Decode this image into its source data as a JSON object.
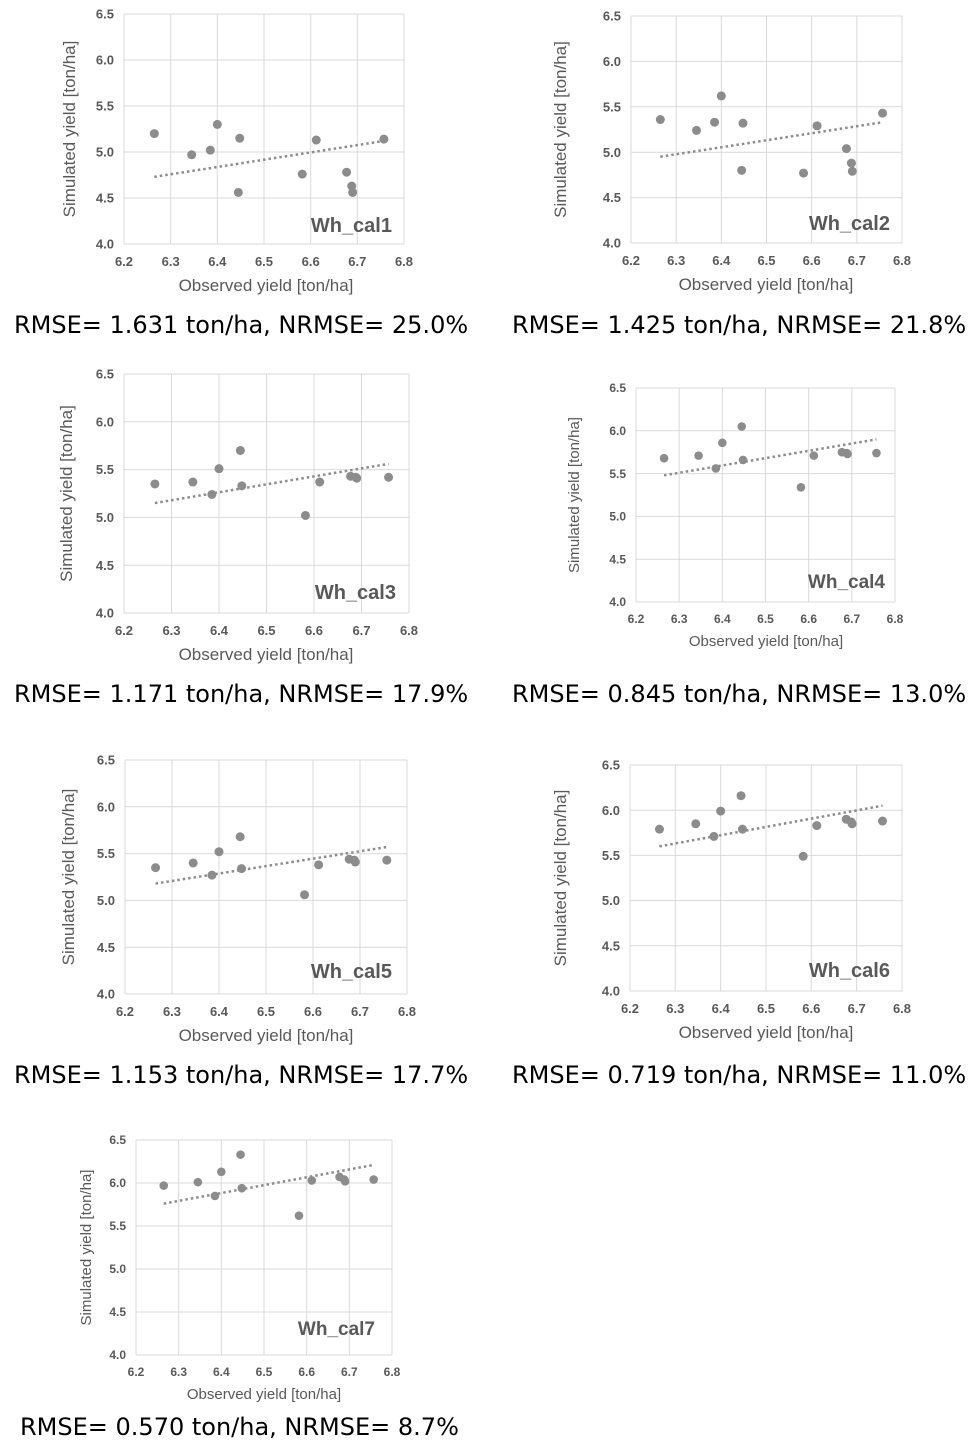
{
  "chart_data": [
    {
      "type": "scatter",
      "title": "Wh_cal1",
      "xlabel": "Observed yield [ton/ha]",
      "ylabel": "Simulated yield [ton/ha]",
      "xlim": [
        6.2,
        6.8
      ],
      "ylim": [
        4.0,
        6.5
      ],
      "xticks": [
        "6.2",
        "6.3",
        "6.4",
        "6.5",
        "6.6",
        "6.7",
        "6.8"
      ],
      "yticks": [
        "4.0",
        "4.5",
        "5.0",
        "5.5",
        "6.0",
        "6.5"
      ],
      "points": [
        [
          6.265,
          5.2
        ],
        [
          6.345,
          4.97
        ],
        [
          6.385,
          5.02
        ],
        [
          6.4,
          5.3
        ],
        [
          6.445,
          4.56
        ],
        [
          6.448,
          5.15
        ],
        [
          6.582,
          4.76
        ],
        [
          6.612,
          5.13
        ],
        [
          6.677,
          4.78
        ],
        [
          6.688,
          4.63
        ],
        [
          6.69,
          4.56
        ],
        [
          6.757,
          5.14
        ]
      ],
      "trendline": [
        [
          6.265,
          4.73
        ],
        [
          6.757,
          5.12
        ]
      ],
      "grid": true,
      "caption": "RMSE= 1.631 ton/ha, NRMSE= 25.0%"
    },
    {
      "type": "scatter",
      "title": "Wh_cal2",
      "xlabel": "Observed yield [ton/ha]",
      "ylabel": "Simulated yield [ton/ha]",
      "xlim": [
        6.2,
        6.8
      ],
      "ylim": [
        4.0,
        6.5
      ],
      "xticks": [
        "6.2",
        "6.3",
        "6.4",
        "6.5",
        "6.6",
        "6.7",
        "6.8"
      ],
      "yticks": [
        "4.0",
        "4.5",
        "5.0",
        "5.5",
        "6.0",
        "6.5"
      ],
      "points": [
        [
          6.265,
          5.36
        ],
        [
          6.345,
          5.24
        ],
        [
          6.385,
          5.33
        ],
        [
          6.4,
          5.62
        ],
        [
          6.445,
          4.8
        ],
        [
          6.448,
          5.32
        ],
        [
          6.582,
          4.77
        ],
        [
          6.612,
          5.29
        ],
        [
          6.677,
          5.04
        ],
        [
          6.688,
          4.88
        ],
        [
          6.69,
          4.79
        ],
        [
          6.757,
          5.43
        ]
      ],
      "trendline": [
        [
          6.265,
          4.95
        ],
        [
          6.757,
          5.33
        ]
      ],
      "grid": true,
      "caption": "RMSE= 1.425 ton/ha, NRMSE= 21.8%"
    },
    {
      "type": "scatter",
      "title": "Wh_cal3",
      "xlabel": "Observed yield [ton/ha]",
      "ylabel": "Simulated yield [ton/ha]",
      "xlim": [
        6.2,
        6.8
      ],
      "ylim": [
        4.0,
        6.5
      ],
      "xticks": [
        "6.2",
        "6.3",
        "6.4",
        "6.5",
        "6.6",
        "6.7",
        "6.8"
      ],
      "yticks": [
        "4.0",
        "4.5",
        "5.0",
        "5.5",
        "6.0",
        "6.5"
      ],
      "points": [
        [
          6.265,
          5.35
        ],
        [
          6.345,
          5.37
        ],
        [
          6.385,
          5.24
        ],
        [
          6.4,
          5.51
        ],
        [
          6.445,
          5.7
        ],
        [
          6.448,
          5.33
        ],
        [
          6.582,
          5.02
        ],
        [
          6.612,
          5.37
        ],
        [
          6.677,
          5.43
        ],
        [
          6.688,
          5.42
        ],
        [
          6.69,
          5.41
        ],
        [
          6.757,
          5.42
        ]
      ],
      "trendline": [
        [
          6.265,
          5.15
        ],
        [
          6.757,
          5.56
        ]
      ],
      "grid": true,
      "caption": "RMSE= 1.171 ton/ha, NRMSE= 17.9%"
    },
    {
      "type": "scatter",
      "title": "Wh_cal4",
      "xlabel": "Observed yield [ton/ha]",
      "ylabel": "Simulated yield [ton/ha]",
      "xlim": [
        6.2,
        6.8
      ],
      "ylim": [
        4.0,
        6.5
      ],
      "xticks": [
        "6.2",
        "6.3",
        "6.4",
        "6.5",
        "6.6",
        "6.7",
        "6.8"
      ],
      "yticks": [
        "4.0",
        "4.5",
        "5.0",
        "5.5",
        "6.0",
        "6.5"
      ],
      "points": [
        [
          6.265,
          5.68
        ],
        [
          6.345,
          5.71
        ],
        [
          6.385,
          5.56
        ],
        [
          6.4,
          5.86
        ],
        [
          6.445,
          6.05
        ],
        [
          6.448,
          5.66
        ],
        [
          6.582,
          5.34
        ],
        [
          6.612,
          5.71
        ],
        [
          6.677,
          5.75
        ],
        [
          6.688,
          5.74
        ],
        [
          6.69,
          5.73
        ],
        [
          6.757,
          5.74
        ]
      ],
      "trendline": [
        [
          6.265,
          5.48
        ],
        [
          6.757,
          5.9
        ]
      ],
      "grid": true,
      "caption": "RMSE= 0.845 ton/ha, NRMSE= 13.0%"
    },
    {
      "type": "scatter",
      "title": "Wh_cal5",
      "xlabel": "Observed yield [ton/ha]",
      "ylabel": "Simulated yield [ton/ha]",
      "xlim": [
        6.2,
        6.8
      ],
      "ylim": [
        4.0,
        6.5
      ],
      "xticks": [
        "6.2",
        "6.3",
        "6.4",
        "6.5",
        "6.6",
        "6.7",
        "6.8"
      ],
      "yticks": [
        "4.0",
        "4.5",
        "5.0",
        "5.5",
        "6.0",
        "6.5"
      ],
      "points": [
        [
          6.265,
          5.35
        ],
        [
          6.345,
          5.4
        ],
        [
          6.385,
          5.27
        ],
        [
          6.4,
          5.52
        ],
        [
          6.445,
          5.68
        ],
        [
          6.448,
          5.34
        ],
        [
          6.582,
          5.06
        ],
        [
          6.612,
          5.38
        ],
        [
          6.677,
          5.44
        ],
        [
          6.688,
          5.43
        ],
        [
          6.69,
          5.41
        ],
        [
          6.757,
          5.43
        ]
      ],
      "trendline": [
        [
          6.265,
          5.18
        ],
        [
          6.757,
          5.57
        ]
      ],
      "grid": true,
      "caption": "RMSE= 1.153 ton/ha, NRMSE= 17.7%"
    },
    {
      "type": "scatter",
      "title": "Wh_cal6",
      "xlabel": "Observed yield [ton/ha]",
      "ylabel": "Simulated yield [ton/ha]",
      "xlim": [
        6.2,
        6.8
      ],
      "ylim": [
        4.0,
        6.5
      ],
      "xticks": [
        "6.2",
        "6.3",
        "6.4",
        "6.5",
        "6.6",
        "6.7",
        "6.8"
      ],
      "yticks": [
        "4.0",
        "4.5",
        "5.0",
        "5.5",
        "6.0",
        "6.5"
      ],
      "points": [
        [
          6.265,
          5.79
        ],
        [
          6.345,
          5.85
        ],
        [
          6.385,
          5.71
        ],
        [
          6.4,
          5.99
        ],
        [
          6.445,
          6.16
        ],
        [
          6.448,
          5.79
        ],
        [
          6.582,
          5.49
        ],
        [
          6.612,
          5.83
        ],
        [
          6.677,
          5.9
        ],
        [
          6.688,
          5.87
        ],
        [
          6.69,
          5.85
        ],
        [
          6.757,
          5.88
        ]
      ],
      "trendline": [
        [
          6.265,
          5.6
        ],
        [
          6.757,
          6.05
        ]
      ],
      "grid": true,
      "caption": "RMSE= 0.719 ton/ha, NRMSE= 11.0%"
    },
    {
      "type": "scatter",
      "title": "Wh_cal7",
      "xlabel": "Observed yield [ton/ha]",
      "ylabel": "Simulated yield [ton/ha]",
      "xlim": [
        6.2,
        6.8
      ],
      "ylim": [
        4.0,
        6.5
      ],
      "xticks": [
        "6.2",
        "6.3",
        "6.4",
        "6.5",
        "6.6",
        "6.7",
        "6.8"
      ],
      "yticks": [
        "4.0",
        "4.5",
        "5.0",
        "5.5",
        "6.0",
        "6.5"
      ],
      "points": [
        [
          6.265,
          5.97
        ],
        [
          6.345,
          6.01
        ],
        [
          6.385,
          5.85
        ],
        [
          6.4,
          6.13
        ],
        [
          6.445,
          6.33
        ],
        [
          6.448,
          5.94
        ],
        [
          6.582,
          5.62
        ],
        [
          6.612,
          6.03
        ],
        [
          6.677,
          6.07
        ],
        [
          6.688,
          6.04
        ],
        [
          6.69,
          6.02
        ],
        [
          6.757,
          6.04
        ]
      ],
      "trendline": [
        [
          6.265,
          5.76
        ],
        [
          6.757,
          6.21
        ]
      ],
      "grid": true,
      "caption": "RMSE= 0.570 ton/ha, NRMSE= 8.7%"
    }
  ]
}
